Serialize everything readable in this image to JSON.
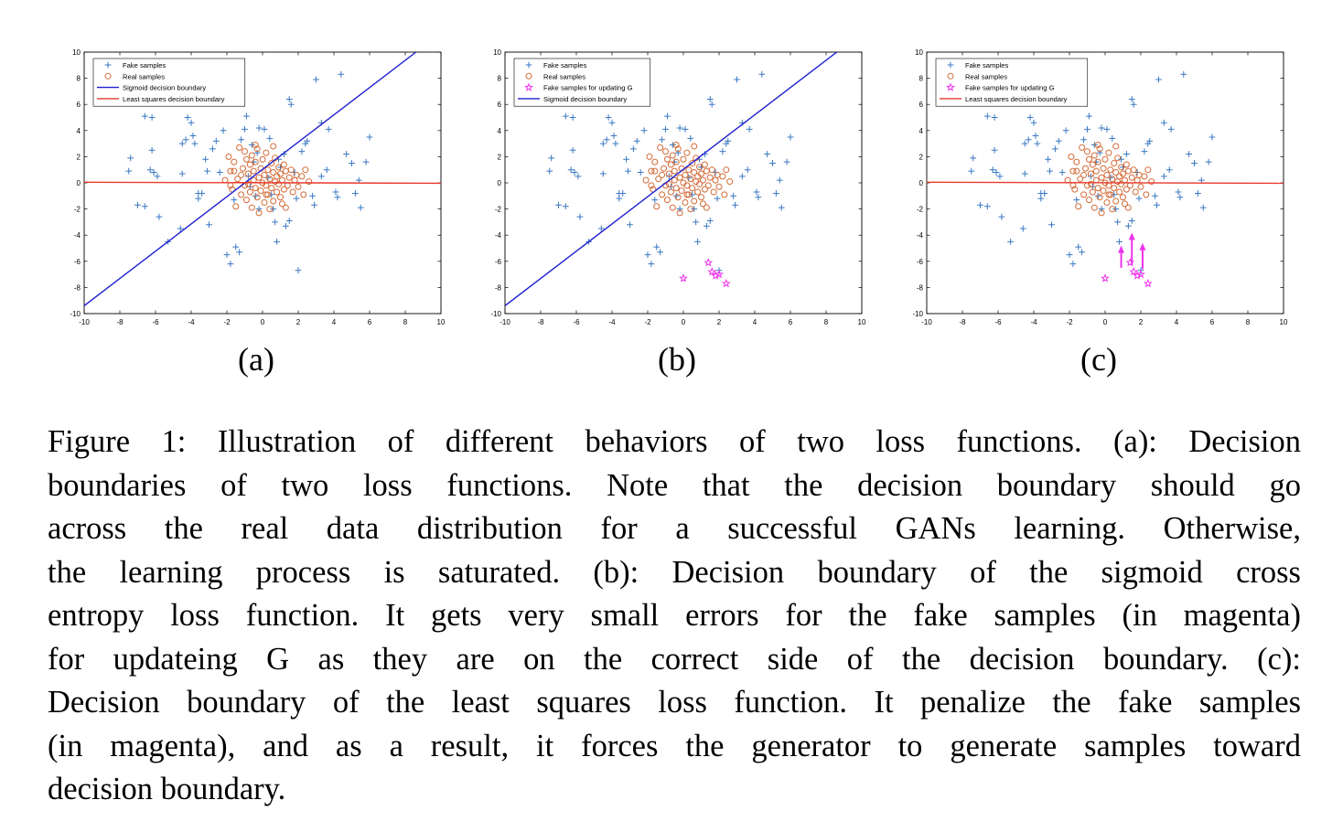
{
  "chart_data": [
    {
      "type": "scatter",
      "panel_label": "(a)",
      "xlim": [
        -10,
        10
      ],
      "ylim": [
        -10,
        10
      ],
      "x_ticks": [
        "-10",
        "-8",
        "-6",
        "-4",
        "-2",
        "0",
        "2",
        "4",
        "6",
        "8",
        "10"
      ],
      "y_ticks": [
        "10",
        "8",
        "6",
        "4",
        "2",
        "0",
        "-2",
        "-4",
        "-6",
        "-8",
        "-10"
      ],
      "grid": false,
      "legend_position": "top-left",
      "legend": [
        "Fake samples",
        "Real samples",
        "Sigmoid decision boundary",
        "Least squares decision boundary"
      ],
      "lines": [
        {
          "kind": "sigmoid",
          "color": "#1f1fd1",
          "points": [
            [
              -10,
              -9.4
            ],
            [
              8.6,
              10
            ]
          ]
        },
        {
          "kind": "least_squares",
          "color": "#e8392b",
          "points": [
            [
              -10,
              0.05
            ],
            [
              10,
              -0.03
            ]
          ]
        }
      ],
      "show_magenta": false,
      "show_arrows": false
    },
    {
      "type": "scatter",
      "panel_label": "(b)",
      "xlim": [
        -10,
        10
      ],
      "ylim": [
        -10,
        10
      ],
      "x_ticks": [
        "-10",
        "-8",
        "-6",
        "-4",
        "-2",
        "0",
        "2",
        "4",
        "6",
        "8",
        "10"
      ],
      "y_ticks": [
        "10",
        "8",
        "6",
        "4",
        "2",
        "0",
        "-2",
        "-4",
        "-6",
        "-8",
        "-10"
      ],
      "grid": false,
      "legend_position": "top-left",
      "legend": [
        "Fake samples",
        "Real samples",
        "Fake samples for updating G",
        "Sigmoid decision boundary"
      ],
      "lines": [
        {
          "kind": "sigmoid",
          "color": "#1f1fd1",
          "points": [
            [
              -10,
              -9.4
            ],
            [
              8.6,
              10
            ]
          ]
        }
      ],
      "show_magenta": true,
      "show_arrows": false
    },
    {
      "type": "scatter",
      "panel_label": "(c)",
      "xlim": [
        -10,
        10
      ],
      "ylim": [
        -10,
        10
      ],
      "x_ticks": [
        "-10",
        "-8",
        "-6",
        "-4",
        "-2",
        "0",
        "2",
        "4",
        "6",
        "8",
        "10"
      ],
      "y_ticks": [
        "10",
        "8",
        "6",
        "4",
        "2",
        "0",
        "-2",
        "-4",
        "-6",
        "-8",
        "-10"
      ],
      "grid": false,
      "legend_position": "top-left",
      "legend": [
        "Fake samples",
        "Real samples",
        "Fake samples for updating G",
        "Least squares decision boundary"
      ],
      "lines": [
        {
          "kind": "least_squares",
          "color": "#e8392b",
          "points": [
            [
              -10,
              0.05
            ],
            [
              10,
              -0.03
            ]
          ]
        }
      ],
      "show_magenta": true,
      "show_arrows": true,
      "arrows": [
        [
          0.9,
          -6.5,
          0.9,
          -4.8
        ],
        [
          1.5,
          -6.3,
          1.5,
          -3.8
        ],
        [
          2.1,
          -6.6,
          2.1,
          -4.6
        ]
      ]
    }
  ],
  "series_data": {
    "fake": [
      [
        -7.4,
        1.9
      ],
      [
        -7.5,
        0.9
      ],
      [
        -6.6,
        5.1
      ],
      [
        -6.2,
        5.0
      ],
      [
        -6.2,
        2.5
      ],
      [
        -6.3,
        1.0
      ],
      [
        -6.1,
        0.8
      ],
      [
        -5.9,
        0.5
      ],
      [
        -7.0,
        -1.7
      ],
      [
        -6.6,
        -1.8
      ],
      [
        -5.8,
        -2.6
      ],
      [
        -5.3,
        -4.5
      ],
      [
        -4.6,
        -3.5
      ],
      [
        -4.5,
        3.0
      ],
      [
        -4.5,
        0.7
      ],
      [
        -4.3,
        3.3
      ],
      [
        -4.2,
        5.0
      ],
      [
        -4.0,
        4.6
      ],
      [
        -3.9,
        3.6
      ],
      [
        -3.8,
        3.0
      ],
      [
        -3.6,
        -0.8
      ],
      [
        -3.6,
        -1.2
      ],
      [
        -3.4,
        -0.8
      ],
      [
        -3.2,
        1.8
      ],
      [
        -3.1,
        0.9
      ],
      [
        -3.0,
        -3.2
      ],
      [
        -2.8,
        2.6
      ],
      [
        -2.6,
        3.2
      ],
      [
        -2.2,
        4.0
      ],
      [
        -2.4,
        0.8
      ],
      [
        -2.0,
        -5.5
      ],
      [
        -1.8,
        -6.2
      ],
      [
        -1.5,
        -4.9
      ],
      [
        -1.3,
        -5.3
      ],
      [
        -1.2,
        3.3
      ],
      [
        -1.0,
        4.1
      ],
      [
        -0.9,
        5.1
      ],
      [
        -0.8,
        0.5
      ],
      [
        -0.6,
        2.9
      ],
      [
        -0.5,
        1.6
      ],
      [
        -0.4,
        -1.0
      ],
      [
        -0.3,
        2.3
      ],
      [
        -0.2,
        4.2
      ],
      [
        0.1,
        4.1
      ],
      [
        0.4,
        3.4
      ],
      [
        0.5,
        -0.9
      ],
      [
        0.6,
        -2.0
      ],
      [
        0.7,
        -3.0
      ],
      [
        0.8,
        -4.5
      ],
      [
        0.9,
        1.8
      ],
      [
        1.2,
        2.2
      ],
      [
        1.3,
        -3.3
      ],
      [
        1.5,
        -2.9
      ],
      [
        1.5,
        6.4
      ],
      [
        1.6,
        6.0
      ],
      [
        1.8,
        0.8
      ],
      [
        1.9,
        -1.2
      ],
      [
        2.0,
        -6.7
      ],
      [
        2.4,
        3.0
      ],
      [
        2.5,
        3.2
      ],
      [
        2.8,
        -1.0
      ],
      [
        2.9,
        -1.7
      ],
      [
        3.0,
        7.9
      ],
      [
        3.3,
        4.6
      ],
      [
        3.6,
        1.0
      ],
      [
        3.7,
        4.1
      ],
      [
        4.1,
        -0.7
      ],
      [
        4.2,
        -1.1
      ],
      [
        4.4,
        8.3
      ],
      [
        4.7,
        2.2
      ],
      [
        5.0,
        1.5
      ],
      [
        5.2,
        -0.8
      ],
      [
        5.4,
        0.2
      ],
      [
        5.8,
        1.6
      ],
      [
        5.5,
        -1.9
      ],
      [
        6.0,
        3.5
      ],
      [
        3.3,
        0.5
      ],
      [
        2.2,
        2.4
      ],
      [
        -0.2,
        -2.0
      ],
      [
        -1.6,
        -1.3
      ],
      [
        1.0,
        1.2
      ],
      [
        0.3,
        0.4
      ],
      [
        -0.7,
        -0.3
      ]
    ],
    "real": [
      [
        -2.1,
        0.2
      ],
      [
        -1.9,
        2.0
      ],
      [
        -1.8,
        0.9
      ],
      [
        -1.7,
        -0.5
      ],
      [
        -1.6,
        1.6
      ],
      [
        -1.5,
        -1.8
      ],
      [
        -1.4,
        0.3
      ],
      [
        -1.3,
        2.7
      ],
      [
        -1.2,
        -0.9
      ],
      [
        -1.1,
        1.1
      ],
      [
        -1.0,
        2.4
      ],
      [
        -1.0,
        -0.2
      ],
      [
        -0.9,
        1.8
      ],
      [
        -0.9,
        -1.3
      ],
      [
        -0.8,
        0.7
      ],
      [
        -0.7,
        -0.7
      ],
      [
        -0.7,
        1.4
      ],
      [
        -0.6,
        2.1
      ],
      [
        -0.6,
        -1.9
      ],
      [
        -0.5,
        0.2
      ],
      [
        -0.5,
        0.9
      ],
      [
        -0.4,
        -0.4
      ],
      [
        -0.4,
        1.6
      ],
      [
        -0.3,
        -1.1
      ],
      [
        -0.3,
        2.6
      ],
      [
        -0.2,
        0.4
      ],
      [
        -0.2,
        -2.3
      ],
      [
        -0.1,
        1.1
      ],
      [
        -0.1,
        -0.6
      ],
      [
        0.0,
        0.0
      ],
      [
        0.0,
        1.8
      ],
      [
        0.1,
        -1.5
      ],
      [
        0.1,
        0.6
      ],
      [
        0.2,
        -0.2
      ],
      [
        0.2,
        2.3
      ],
      [
        0.3,
        1.0
      ],
      [
        0.3,
        -0.9
      ],
      [
        0.4,
        0.3
      ],
      [
        0.4,
        -2.0
      ],
      [
        0.5,
        1.5
      ],
      [
        0.5,
        -0.4
      ],
      [
        0.6,
        0.8
      ],
      [
        0.6,
        -1.4
      ],
      [
        0.7,
        0.1
      ],
      [
        0.7,
        1.9
      ],
      [
        0.8,
        -0.7
      ],
      [
        0.8,
        0.5
      ],
      [
        0.9,
        -0.1
      ],
      [
        0.9,
        1.2
      ],
      [
        1.0,
        -1.1
      ],
      [
        1.0,
        0.7
      ],
      [
        1.1,
        0.2
      ],
      [
        1.2,
        -0.5
      ],
      [
        1.2,
        1.4
      ],
      [
        1.3,
        0.9
      ],
      [
        1.4,
        -0.2
      ],
      [
        1.5,
        0.4
      ],
      [
        1.6,
        1.0
      ],
      [
        1.7,
        -0.7
      ],
      [
        1.8,
        0.2
      ],
      [
        1.9,
        0.6
      ],
      [
        2.0,
        -0.3
      ],
      [
        2.2,
        0.5
      ],
      [
        2.4,
        1.0
      ],
      [
        2.6,
        0.1
      ],
      [
        -1.6,
        0.9
      ],
      [
        -1.8,
        -0.2
      ],
      [
        -0.8,
        -0.1
      ],
      [
        0.2,
        -0.9
      ],
      [
        1.1,
        -1.6
      ],
      [
        -1.2,
        0.6
      ],
      [
        0.6,
        2.8
      ],
      [
        1.3,
        -1.9
      ],
      [
        -0.4,
        2.9
      ],
      [
        2.3,
        -0.9
      ]
    ],
    "magenta": [
      [
        0.0,
        -7.3
      ],
      [
        1.4,
        -6.1
      ],
      [
        1.6,
        -6.8
      ],
      [
        1.8,
        -7.1
      ],
      [
        2.0,
        -7.0
      ],
      [
        2.4,
        -7.7
      ]
    ]
  },
  "caption_lines": [
    "Figure 1: Illustration of different behaviors of two loss functions. (a): Decision",
    "boundaries of two loss functions. Note that the decision boundary should go",
    "across the real data distribution for a successful GANs learning. Otherwise,",
    "the learning process is saturated. (b): Decision boundary of the sigmoid cross",
    "entropy loss function. It gets very small errors for the fake samples (in magenta)",
    "for updateing G as they are on the correct side of the decision boundary. (c):",
    "Decision boundary of the least squares loss function. It penalize the fake samples",
    "(in magenta), and as a result, it forces the generator to generate samples toward",
    "decision boundary."
  ],
  "colors": {
    "fake": "#3a78c2",
    "real": "#d36b37",
    "magenta": "#ee33ee",
    "sigmoid": "#1f1fd1",
    "least_squares": "#e8392b"
  }
}
